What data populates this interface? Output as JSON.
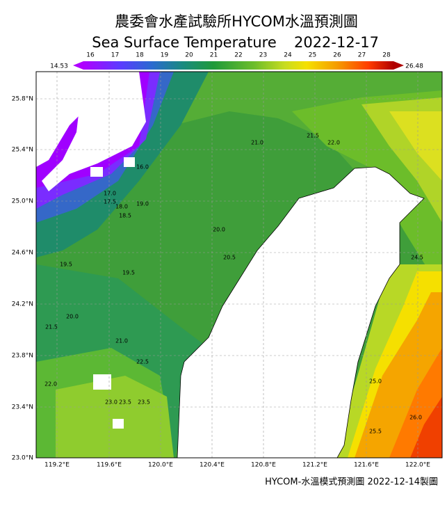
{
  "header": {
    "title": "農委會水產試驗所HYCOM水溫預測圖",
    "subtitle_name": "Sea Surface Temperature",
    "subtitle_date": "2022-12-17"
  },
  "colorbar": {
    "min_label": "14.53",
    "max_label": "26.48",
    "ticks": [
      "16",
      "17",
      "18",
      "19",
      "20",
      "21",
      "22",
      "23",
      "24",
      "25",
      "26",
      "27",
      "28"
    ]
  },
  "axes": {
    "lat_labels": [
      "25.8°N",
      "25.4°N",
      "25.0°N",
      "24.6°N",
      "24.2°N",
      "23.8°N",
      "23.4°N",
      "23.0°N"
    ],
    "lon_labels": [
      "119.2°E",
      "119.6°E",
      "120.0°E",
      "120.4°E",
      "120.8°E",
      "121.2°E",
      "121.6°E",
      "122.0°E"
    ]
  },
  "contour_labels": [
    "16.0",
    "17.0",
    "17.5",
    "18.0",
    "18.5",
    "19.0",
    "19.5",
    "19.5",
    "20.0",
    "20.0",
    "20.5",
    "21.0",
    "21.0",
    "21.5",
    "21.5",
    "22.0",
    "22.0",
    "22.5",
    "23.0",
    "23.5",
    "23.5",
    "24.5",
    "25.0",
    "25.5",
    "26.0"
  ],
  "footer": "HYCOM-水溫模式預測圖 2022-12-14製圖"
}
